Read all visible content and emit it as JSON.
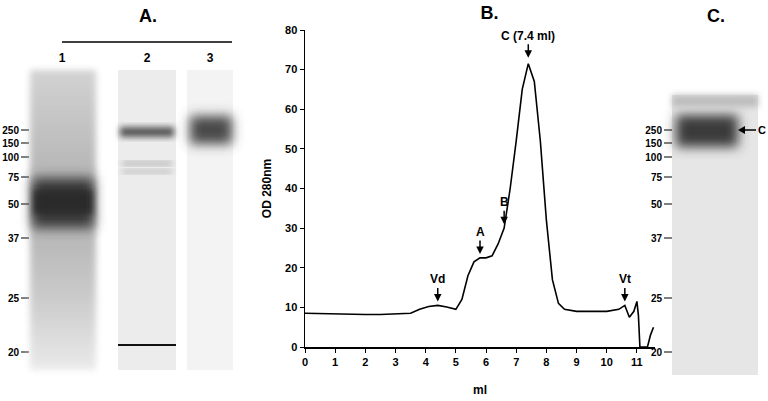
{
  "chart_data": {
    "type": "line",
    "title": "B.",
    "x": [
      0,
      0.5,
      1,
      1.5,
      2,
      2.5,
      3,
      3.5,
      3.8,
      4.1,
      4.4,
      4.7,
      5.0,
      5.2,
      5.4,
      5.6,
      5.8,
      6.0,
      6.2,
      6.4,
      6.6,
      6.8,
      7.0,
      7.2,
      7.4,
      7.6,
      7.8,
      8.0,
      8.2,
      8.4,
      8.6,
      9.0,
      9.5,
      10.0,
      10.4,
      10.6,
      10.75,
      10.9,
      11.0,
      11.05,
      11.1,
      11.35,
      11.45,
      11.55
    ],
    "values": [
      8.5,
      8.4,
      8.3,
      8.3,
      8.2,
      8.2,
      8.3,
      8.5,
      9.5,
      10.2,
      10.5,
      10.1,
      9.5,
      12,
      18,
      21.5,
      22.5,
      22.5,
      23,
      26,
      30,
      40,
      52,
      65,
      71.5,
      67,
      52,
      32,
      17,
      11,
      9.5,
      9,
      9,
      9,
      9.5,
      10.5,
      7.5,
      9,
      11.5,
      8,
      0,
      0,
      3,
      5
    ],
    "color": "#000000",
    "x_label": "ml",
    "y_label": "OD 280nm",
    "xlim": [
      0,
      11.6
    ],
    "xticks": [
      0,
      1,
      2,
      3,
      4,
      5,
      6,
      7,
      8,
      9,
      10,
      11
    ],
    "ylim": [
      0,
      80
    ],
    "yticks": [
      0,
      10,
      20,
      30,
      40,
      50,
      60,
      70,
      80
    ],
    "grid": false,
    "annotations": [
      {
        "text": "Vd",
        "x": 4.4,
        "y": 11.5
      },
      {
        "text": "A",
        "x": 5.8,
        "y": 23.5
      },
      {
        "text": "B",
        "x": 6.6,
        "y": 31
      },
      {
        "text": "C (7.4 ml)",
        "x": 7.4,
        "y": 73
      },
      {
        "text": "Vt",
        "x": 10.6,
        "y": 11.5
      }
    ]
  },
  "gels": {
    "A": {
      "label": "A.",
      "lanes": [
        "1",
        "2",
        "3"
      ],
      "markers": [
        250,
        150,
        100,
        75,
        50,
        37,
        25,
        20
      ]
    },
    "C": {
      "label": "C.",
      "markers": [
        250,
        150,
        100,
        75,
        50,
        37,
        25,
        20
      ],
      "band_label": "C"
    }
  }
}
